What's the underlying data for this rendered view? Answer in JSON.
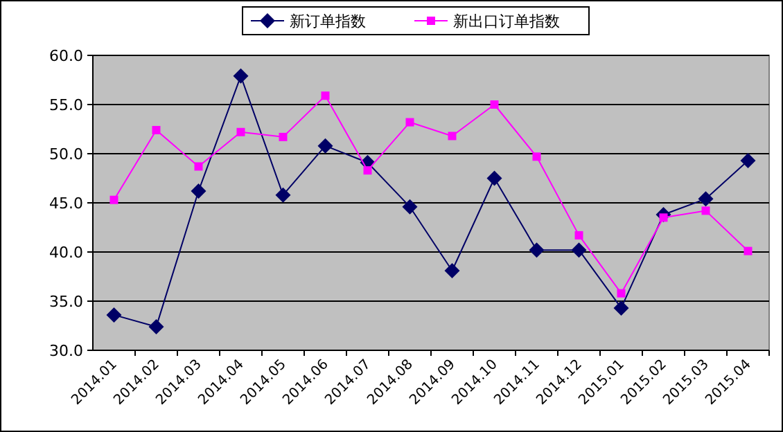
{
  "chart_data": {
    "type": "line",
    "categories": [
      "2014.01",
      "2014.02",
      "2014.03",
      "2014.04",
      "2014.05",
      "2014.06",
      "2014.07",
      "2014.08",
      "2014.09",
      "2014.10",
      "2014.11",
      "2014.12",
      "2015.01",
      "2015.02",
      "2015.03",
      "2015.04"
    ],
    "series": [
      {
        "name": "新订单指数",
        "color": "#000066",
        "marker": "diamond",
        "values": [
          33.6,
          32.4,
          46.2,
          57.9,
          45.8,
          50.8,
          49.1,
          44.6,
          38.1,
          47.5,
          40.2,
          40.2,
          34.3,
          43.8,
          45.4,
          49.3
        ]
      },
      {
        "name": "新出口订单指数",
        "color": "#ff00ff",
        "marker": "square",
        "values": [
          45.3,
          52.4,
          48.7,
          52.2,
          51.7,
          55.9,
          48.3,
          53.2,
          51.8,
          55.0,
          49.7,
          41.7,
          35.8,
          43.5,
          44.2,
          40.1
        ]
      }
    ],
    "ylim": [
      30,
      60
    ],
    "yticks": [
      {
        "value": 30,
        "label": "30.0"
      },
      {
        "value": 35,
        "label": "35.0"
      },
      {
        "value": 40,
        "label": "40.0"
      },
      {
        "value": 45,
        "label": "45.0"
      },
      {
        "value": 50,
        "label": "50.0"
      },
      {
        "value": 55,
        "label": "55.0"
      },
      {
        "value": 60,
        "label": "60.0"
      }
    ],
    "grid": "y",
    "legend": "top",
    "line_style": "solid"
  }
}
